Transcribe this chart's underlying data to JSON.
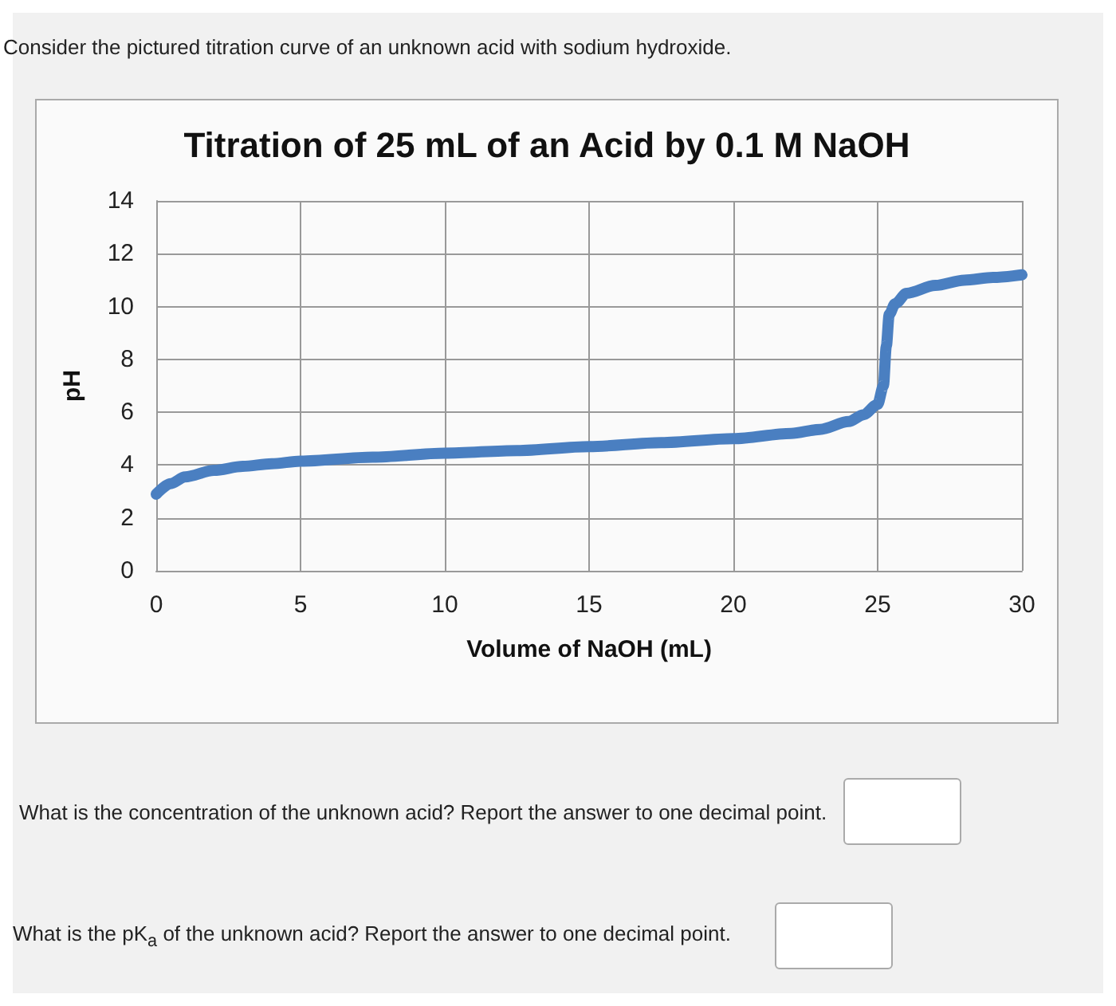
{
  "chart_data": {
    "type": "line",
    "title": "Titration of 25 mL of an Acid by 0.1 M NaOH",
    "xlabel": "Volume of NaOH (mL)",
    "ylabel": "pH",
    "annotations": [
      "Consider the pictured titration curve of an unknown acid with sodium hydroxide.",
      "What is the concentration of the unknown acid? Report the answer to one decimal point.",
      "What is the pK$_{a}$ of the unknown acid? Report the answer to one decimal point."
    ],
    "series": [
      {
        "color": "#4a7fc1",
        "x": [
          0,
          0.5,
          1,
          2,
          3,
          4,
          5,
          7.5,
          10,
          12.5,
          15,
          17.5,
          20,
          22,
          23,
          24,
          24.5,
          25,
          25.2,
          25.3,
          25.4,
          25.6,
          26,
          27,
          28,
          29,
          30
        ],
        "values": [
          2.9,
          3.3,
          3.55,
          3.8,
          3.95,
          4.05,
          4.15,
          4.3,
          4.45,
          4.55,
          4.7,
          4.85,
          5.0,
          5.2,
          5.35,
          5.65,
          5.9,
          6.3,
          7.0,
          8.5,
          9.7,
          10.1,
          10.5,
          10.8,
          11.0,
          11.1,
          11.2
        ]
      }
    ],
    "xlim": [
      0,
      30
    ],
    "xticks": [
      0,
      5,
      10,
      15,
      20,
      25,
      30
    ],
    "ylim": [
      0,
      14
    ],
    "yticks": [
      0,
      2,
      4,
      6,
      8,
      10,
      12,
      14
    ],
    "grid": true,
    "line_style": "solid"
  }
}
